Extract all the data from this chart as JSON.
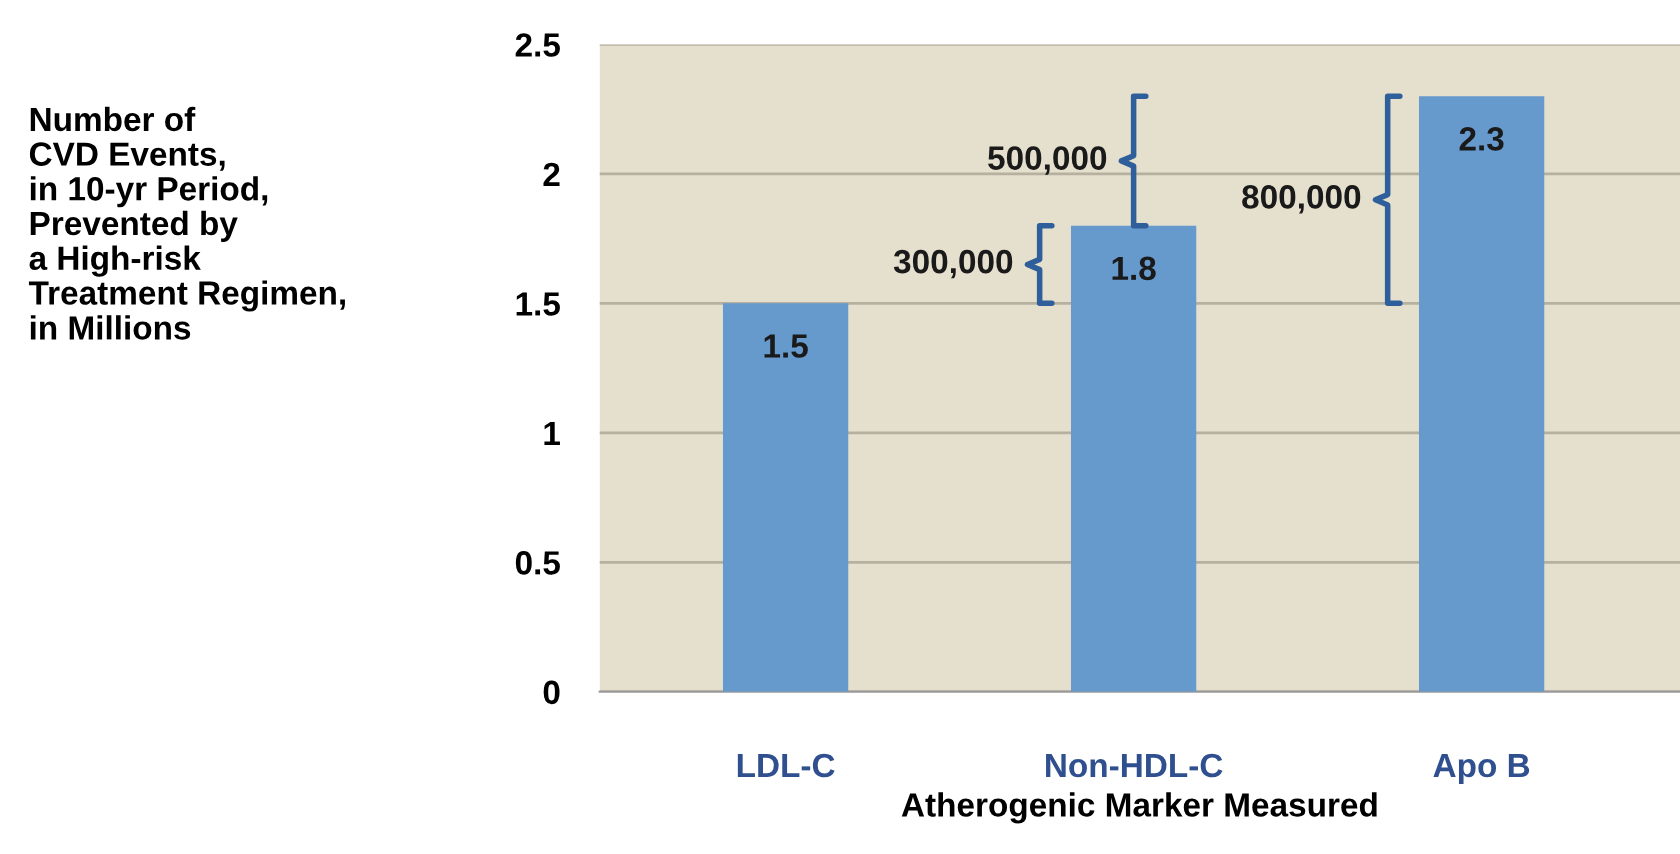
{
  "chart_data": {
    "type": "bar",
    "xlabel": "Atherogenic Marker Measured",
    "categories": [
      "LDL-C",
      "Non-HDL-C",
      "Apo B"
    ],
    "values": [
      1.5,
      1.8,
      2.3
    ],
    "color": "#6699cc",
    "data_labels": true,
    "ylim": [
      0,
      2.5
    ],
    "yticks": [
      0,
      0.5,
      1,
      1.5,
      2,
      2.5
    ],
    "grid": "y",
    "annotations": [
      "Number of\nCVD Events,\nin 10-yr Period,\nPrevented by\na High-risk\nTreatment Regimen,\nin Millions",
      "300,000",
      "500,000",
      "800,000"
    ]
  }
}
